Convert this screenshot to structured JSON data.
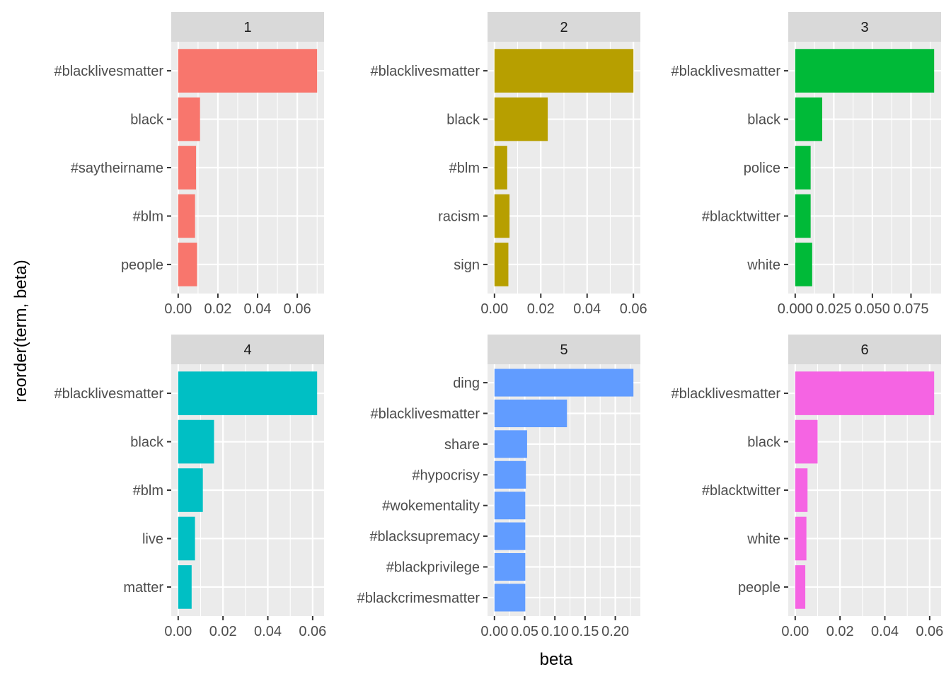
{
  "chart_data": {
    "type": "bar",
    "orientation": "horizontal",
    "facet": "wrap",
    "xlabel": "beta",
    "ylabel": "reorder(term, beta)",
    "legend": "none",
    "grid": true,
    "panels": [
      {
        "title": "1",
        "color": "#F8766D",
        "xlim": [
          -0.0035,
          0.0735
        ],
        "ticks": [
          0.0,
          0.02,
          0.04,
          0.06
        ],
        "tick_labels": [
          "0.00",
          "0.02",
          "0.04",
          "0.06"
        ],
        "terms": [
          "#blacklivesmatter",
          "black",
          "#saytheirname",
          "#blm",
          "people"
        ],
        "values": [
          0.07,
          0.011,
          0.009,
          0.0085,
          0.0095
        ]
      },
      {
        "title": "2",
        "color": "#B79F00",
        "xlim": [
          -0.003,
          0.063
        ],
        "ticks": [
          0.0,
          0.02,
          0.04,
          0.06
        ],
        "tick_labels": [
          "0.00",
          "0.02",
          "0.04",
          "0.06"
        ],
        "terms": [
          "#blacklivesmatter",
          "black",
          "#blm",
          "racism",
          "sign"
        ],
        "values": [
          0.06,
          0.023,
          0.0055,
          0.0065,
          0.006
        ]
      },
      {
        "title": "3",
        "color": "#00BA38",
        "xlim": [
          -0.0045,
          0.0945
        ],
        "ticks": [
          0.0,
          0.025,
          0.05,
          0.075
        ],
        "tick_labels": [
          "0.000",
          "0.025",
          "0.050",
          "0.075"
        ],
        "terms": [
          "#blacklivesmatter",
          "black",
          "police",
          "#blacktwitter",
          "white"
        ],
        "values": [
          0.09,
          0.0175,
          0.01,
          0.01,
          0.011
        ]
      },
      {
        "title": "4",
        "color": "#00BFC4",
        "xlim": [
          -0.0031,
          0.0651
        ],
        "ticks": [
          0.0,
          0.02,
          0.04,
          0.06
        ],
        "tick_labels": [
          "0.00",
          "0.02",
          "0.04",
          "0.06"
        ],
        "terms": [
          "#blacklivesmatter",
          "black",
          "#blm",
          "live",
          "matter"
        ],
        "values": [
          0.062,
          0.016,
          0.011,
          0.0075,
          0.006
        ]
      },
      {
        "title": "5",
        "color": "#619CFF",
        "xlim": [
          -0.0115,
          0.2415
        ],
        "ticks": [
          0.0,
          0.05,
          0.1,
          0.15,
          0.2
        ],
        "tick_labels": [
          "0.00",
          "0.05",
          "0.10",
          "0.15",
          "0.20"
        ],
        "terms": [
          "ding",
          "#blacklivesmatter",
          "share",
          "#hypocrisy",
          "#wokementality",
          "#blacksupremacy",
          "#blackprivilege",
          "#blackcrimesmatter"
        ],
        "values": [
          0.23,
          0.12,
          0.054,
          0.052,
          0.051,
          0.051,
          0.051,
          0.051
        ]
      },
      {
        "title": "6",
        "color": "#F564E3",
        "xlim": [
          -0.0031,
          0.0651
        ],
        "ticks": [
          0.0,
          0.02,
          0.04,
          0.06
        ],
        "tick_labels": [
          "0.00",
          "0.02",
          "0.04",
          "0.06"
        ],
        "terms": [
          "#blacklivesmatter",
          "black",
          "#blacktwitter",
          "white",
          "people"
        ],
        "values": [
          0.062,
          0.01,
          0.0055,
          0.005,
          0.0045
        ]
      }
    ]
  }
}
